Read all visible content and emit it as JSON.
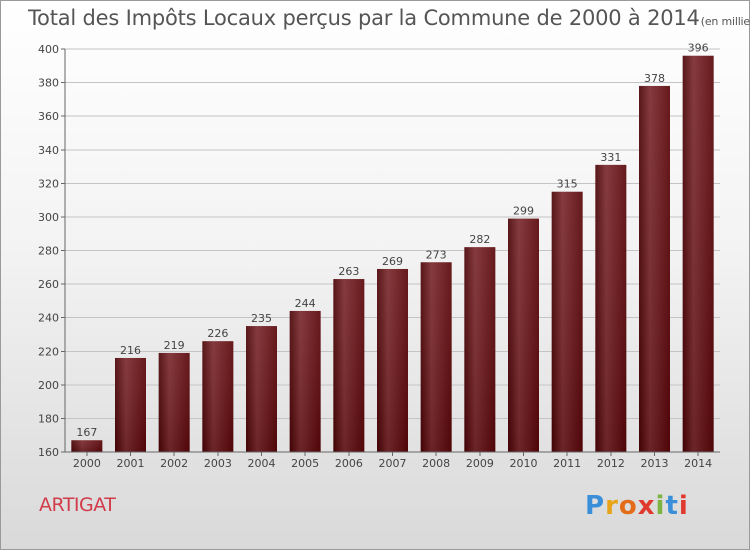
{
  "title": "Total des Impôts Locaux perçus par la Commune de 2000 à 2014",
  "title_unit": "(en milliers d'€)",
  "commune": "ARTIGAT",
  "logo": {
    "letters": [
      "P",
      "r",
      "o",
      "x",
      "i",
      "t",
      "i"
    ],
    "colors": [
      "#3b8fd9",
      "#e8a317",
      "#e36c1b",
      "#e03a2e",
      "#7cb342",
      "#3b8fd9",
      "#e03a2e"
    ]
  },
  "colors": {
    "bar": "#6b0d12",
    "title": "#555555",
    "commune": "#d23b4a"
  },
  "chart_data": {
    "type": "bar",
    "title": "Total des Impôts Locaux perçus par la Commune de 2000 à 2014",
    "xlabel": "",
    "ylabel": "en milliers d'€",
    "categories": [
      "2000",
      "2001",
      "2002",
      "2003",
      "2004",
      "2005",
      "2006",
      "2007",
      "2008",
      "2009",
      "2010",
      "2011",
      "2012",
      "2013",
      "2014"
    ],
    "values": [
      167,
      216,
      219,
      226,
      235,
      244,
      263,
      269,
      273,
      282,
      299,
      315,
      331,
      378,
      396
    ],
    "ylim": [
      160,
      400
    ],
    "yticks": [
      160,
      180,
      200,
      220,
      240,
      260,
      280,
      300,
      320,
      340,
      360,
      380,
      400
    ],
    "grid": true
  }
}
